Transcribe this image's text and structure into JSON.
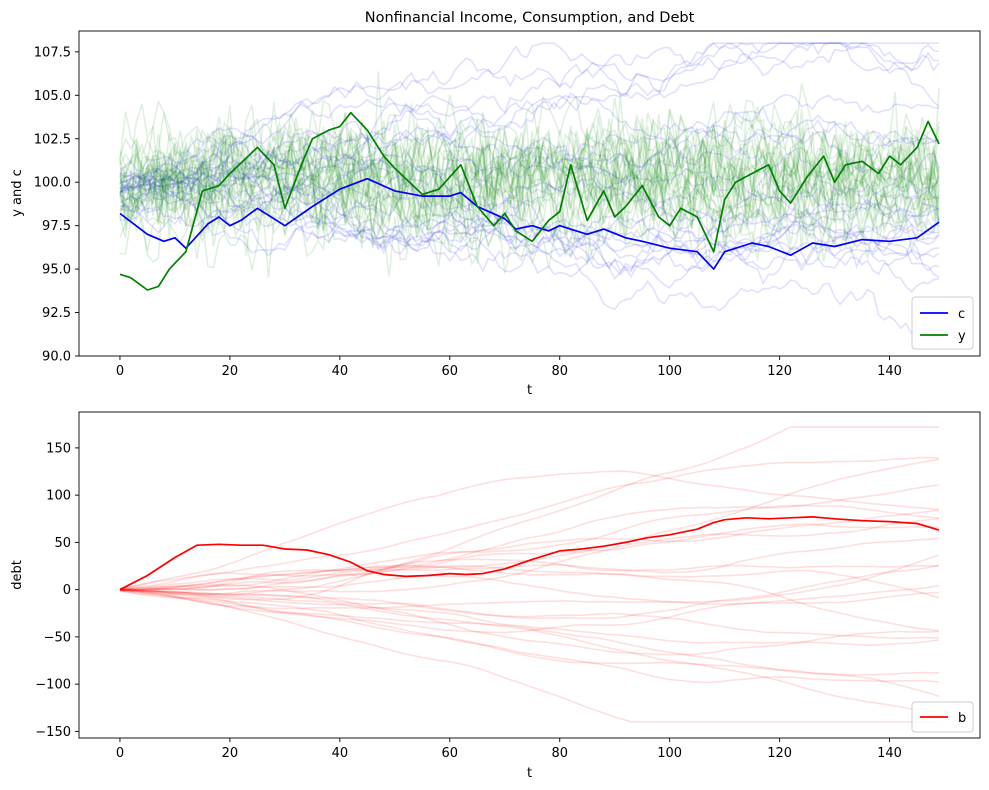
{
  "chart_data": [
    {
      "type": "line",
      "title": "Nonfinancial Income, Consumption, and Debt",
      "xlabel": "t",
      "ylabel": "y and c",
      "xlim": [
        -7.45,
        156.45
      ],
      "ylim": [
        90.0,
        108.7
      ],
      "xticks": [
        "0",
        "20",
        "40",
        "60",
        "80",
        "100",
        "120",
        "140"
      ],
      "xtick_values": [
        0,
        20,
        40,
        60,
        80,
        100,
        120,
        140
      ],
      "yticks": [
        "90.0",
        "92.5",
        "95.0",
        "97.5",
        "100.0",
        "102.5",
        "105.0",
        "107.5"
      ],
      "ytick_values": [
        90.0,
        92.5,
        95.0,
        97.5,
        100.0,
        102.5,
        105.0,
        107.5
      ],
      "legend_position": "lower right",
      "grid": false,
      "n_background_paths": {
        "c": 25,
        "y": 25
      },
      "series": [
        {
          "name": "c",
          "color": "#0000ff",
          "x": [
            0,
            5,
            8,
            10,
            12,
            16,
            18,
            20,
            22,
            25,
            30,
            35,
            40,
            45,
            50,
            55,
            60,
            62,
            65,
            70,
            72,
            75,
            78,
            80,
            85,
            88,
            92,
            95,
            100,
            105,
            108,
            110,
            115,
            118,
            122,
            126,
            130,
            135,
            140,
            145,
            149
          ],
          "values": [
            98.2,
            97.0,
            96.6,
            96.8,
            96.2,
            97.6,
            98.0,
            97.5,
            97.8,
            98.5,
            97.5,
            98.6,
            99.6,
            100.2,
            99.5,
            99.2,
            99.2,
            99.4,
            98.6,
            97.9,
            97.3,
            97.5,
            97.2,
            97.5,
            97.0,
            97.3,
            96.8,
            96.6,
            96.2,
            96.0,
            95.0,
            96.0,
            96.5,
            96.3,
            95.8,
            96.5,
            96.3,
            96.7,
            96.6,
            96.8,
            97.7
          ]
        },
        {
          "name": "y",
          "color": "#008000",
          "x": [
            0,
            2,
            5,
            7,
            9,
            12,
            15,
            18,
            20,
            25,
            28,
            30,
            33,
            35,
            38,
            40,
            42,
            45,
            48,
            50,
            55,
            58,
            62,
            65,
            68,
            70,
            72,
            75,
            78,
            80,
            82,
            85,
            88,
            90,
            92,
            95,
            98,
            100,
            102,
            105,
            108,
            110,
            112,
            115,
            118,
            120,
            122,
            125,
            128,
            130,
            132,
            135,
            138,
            140,
            142,
            145,
            147,
            149
          ],
          "values": [
            94.7,
            94.5,
            93.8,
            94.0,
            95.0,
            96.0,
            99.5,
            99.8,
            100.5,
            102.0,
            101.0,
            98.5,
            101.0,
            102.5,
            103.0,
            103.2,
            104.0,
            103.0,
            101.5,
            100.8,
            99.3,
            99.6,
            101.0,
            98.6,
            97.5,
            98.2,
            97.2,
            96.6,
            97.8,
            98.3,
            101.0,
            97.8,
            99.5,
            98.0,
            98.6,
            99.8,
            98.0,
            97.5,
            98.5,
            98.0,
            96.0,
            99.0,
            100.0,
            100.5,
            101.0,
            99.5,
            98.8,
            100.3,
            101.5,
            100.0,
            101.0,
            101.2,
            100.5,
            101.5,
            101.0,
            102.0,
            103.5,
            102.2
          ]
        }
      ]
    },
    {
      "type": "line",
      "title": "",
      "xlabel": "t",
      "ylabel": "debt",
      "xlim": [
        -7.45,
        156.45
      ],
      "ylim": [
        -157.0,
        188.0
      ],
      "xticks": [
        "0",
        "20",
        "40",
        "60",
        "80",
        "100",
        "120",
        "140"
      ],
      "xtick_values": [
        0,
        20,
        40,
        60,
        80,
        100,
        120,
        140
      ],
      "yticks": [
        "−150",
        "−100",
        "−50",
        "0",
        "50",
        "100",
        "150"
      ],
      "ytick_values": [
        -150,
        -100,
        -50,
        0,
        50,
        100,
        150
      ],
      "legend_position": "lower right",
      "grid": false,
      "n_background_paths": {
        "b": 25
      },
      "series": [
        {
          "name": "b",
          "color": "#ff0000",
          "x": [
            0,
            5,
            10,
            14,
            18,
            22,
            26,
            30,
            34,
            38,
            42,
            45,
            48,
            52,
            56,
            60,
            63,
            66,
            70,
            75,
            80,
            84,
            88,
            92,
            96,
            100,
            105,
            108,
            110,
            114,
            118,
            122,
            126,
            130,
            135,
            140,
            145,
            149
          ],
          "values": [
            0,
            15,
            34,
            47,
            48,
            47,
            47,
            43,
            42,
            37,
            29,
            20,
            16,
            14,
            15,
            17,
            16,
            17,
            22,
            32,
            41,
            43,
            46,
            50,
            55,
            58,
            64,
            71,
            74,
            76,
            75,
            76,
            77,
            75,
            73,
            72,
            70,
            63
          ]
        }
      ]
    }
  ]
}
